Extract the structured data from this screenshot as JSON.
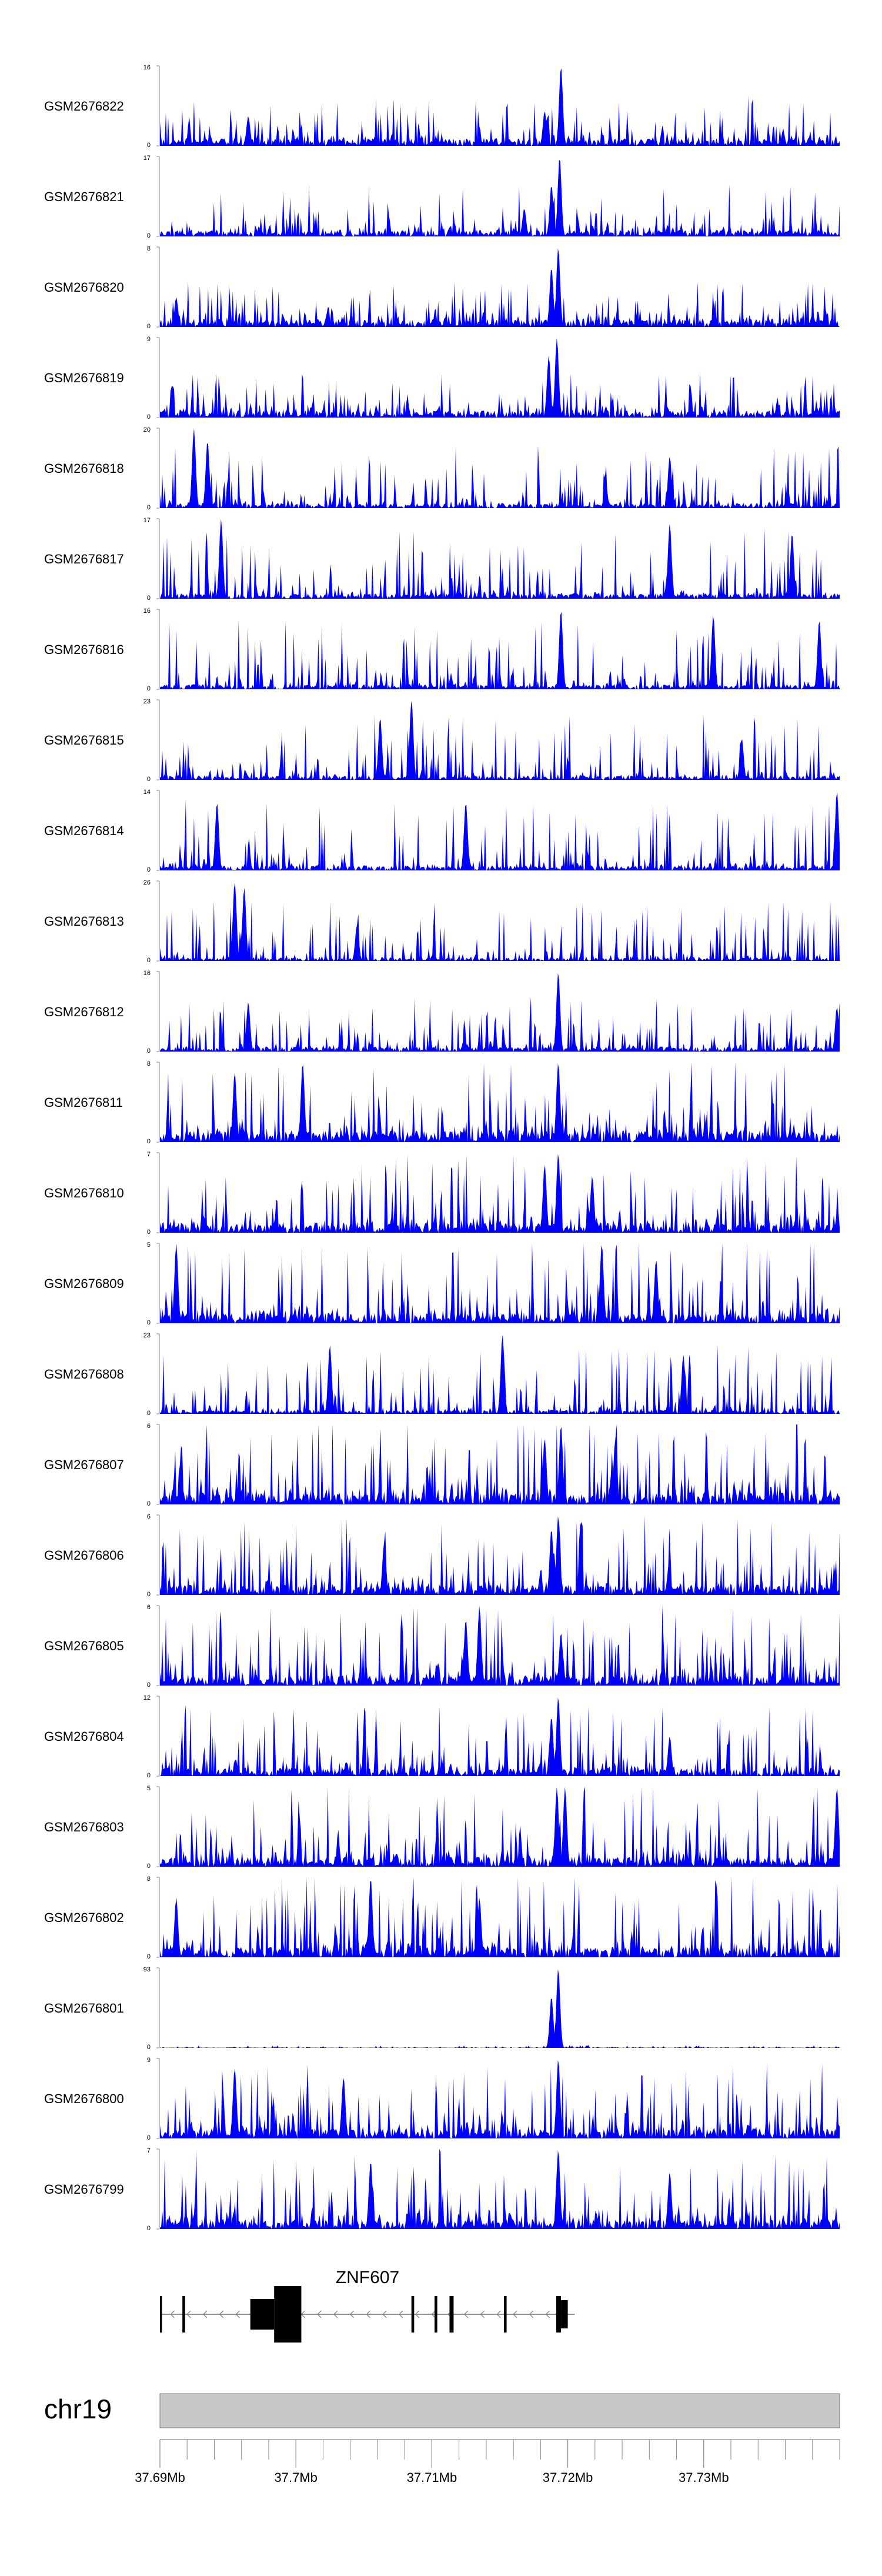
{
  "chart_data": {
    "type": "area",
    "title": "",
    "region": {
      "chromosome": "chr19",
      "start": 37690000,
      "end": 37740000
    },
    "colors": {
      "track_fill": "#0000ff",
      "gene": "#000000",
      "ideogram": "#c8c8c8",
      "axis": "#888888"
    },
    "tracks": [
      {
        "name": "GSM2676822",
        "ymax": 16,
        "ymin": 0,
        "peaks": [
          [
            37.7195,
            16
          ],
          [
            37.7183,
            7
          ],
          [
            37.6965,
            6
          ]
        ],
        "base": 0.22,
        "noise": 0.5,
        "seed": 11
      },
      {
        "name": "GSM2676821",
        "ymax": 17,
        "ymin": 0,
        "peaks": [
          [
            37.7194,
            17
          ],
          [
            37.7188,
            11
          ],
          [
            37.7168,
            6
          ]
        ],
        "base": 0.2,
        "noise": 0.55,
        "seed": 12
      },
      {
        "name": "GSM2676820",
        "ymax": 8,
        "ymin": 0,
        "peaks": [
          [
            37.7193,
            8
          ],
          [
            37.7188,
            6
          ],
          [
            37.6912,
            3
          ]
        ],
        "base": 0.25,
        "noise": 0.45,
        "seed": 13
      },
      {
        "name": "GSM2676819",
        "ymax": 9,
        "ymin": 0,
        "peaks": [
          [
            37.7192,
            9
          ],
          [
            37.7186,
            7
          ]
        ],
        "base": 0.22,
        "noise": 0.45,
        "seed": 14
      },
      {
        "name": "GSM2676818",
        "ymax": 20,
        "ymin": 0,
        "peaks": [
          [
            37.6925,
            20
          ],
          [
            37.6935,
            17
          ],
          [
            37.7275,
            13
          ]
        ],
        "base": 0.15,
        "noise": 0.7,
        "seed": 15
      },
      {
        "name": "GSM2676817",
        "ymax": 17,
        "ymin": 0,
        "peaks": [
          [
            37.6945,
            17
          ],
          [
            37.7275,
            16
          ],
          [
            37.7365,
            14
          ]
        ],
        "base": 0.15,
        "noise": 0.8,
        "seed": 16
      },
      {
        "name": "GSM2676816",
        "ymax": 16,
        "ymin": 0,
        "peaks": [
          [
            37.7195,
            16
          ],
          [
            37.7307,
            15
          ],
          [
            37.7385,
            14
          ]
        ],
        "base": 0.15,
        "noise": 0.8,
        "seed": 17
      },
      {
        "name": "GSM2676815",
        "ymax": 23,
        "ymin": 0,
        "peaks": [
          [
            37.7085,
            23
          ],
          [
            37.7062,
            18
          ],
          [
            37.7328,
            12
          ]
        ],
        "base": 0.12,
        "noise": 0.75,
        "seed": 18
      },
      {
        "name": "GSM2676814",
        "ymax": 14,
        "ymin": 0,
        "peaks": [
          [
            37.7398,
            14
          ],
          [
            37.6942,
            12
          ],
          [
            37.7125,
            12
          ]
        ],
        "base": 0.15,
        "noise": 0.8,
        "seed": 19
      },
      {
        "name": "GSM2676813",
        "ymax": 26,
        "ymin": 0,
        "peaks": [
          [
            37.6955,
            26
          ],
          [
            37.6962,
            24
          ],
          [
            37.7045,
            12
          ]
        ],
        "base": 0.1,
        "noise": 0.7,
        "seed": 20
      },
      {
        "name": "GSM2676812",
        "ymax": 16,
        "ymin": 0,
        "peaks": [
          [
            37.7193,
            16
          ],
          [
            37.6965,
            10
          ],
          [
            37.7398,
            9
          ]
        ],
        "base": 0.15,
        "noise": 0.6,
        "seed": 21
      },
      {
        "name": "GSM2676811",
        "ymax": 8,
        "ymin": 0,
        "peaks": [
          [
            37.7005,
            8
          ],
          [
            37.7193,
            8
          ],
          [
            37.6955,
            7
          ]
        ],
        "base": 0.35,
        "noise": 0.9,
        "seed": 22
      },
      {
        "name": "GSM2676810",
        "ymax": 7,
        "ymin": 0,
        "peaks": [
          [
            37.7193,
            7
          ],
          [
            37.7183,
            6
          ],
          [
            37.7218,
            5
          ]
        ],
        "base": 0.3,
        "noise": 0.85,
        "seed": 23
      },
      {
        "name": "GSM2676809",
        "ymax": 5,
        "ymin": 0,
        "peaks": [
          [
            37.7225,
            5
          ],
          [
            37.6912,
            5
          ],
          [
            37.7265,
            4
          ]
        ],
        "base": 0.3,
        "noise": 0.9,
        "seed": 24
      },
      {
        "name": "GSM2676808",
        "ymax": 23,
        "ymin": 0,
        "peaks": [
          [
            37.7152,
            23
          ],
          [
            37.7025,
            20
          ],
          [
            37.7285,
            17
          ]
        ],
        "base": 0.12,
        "noise": 0.8,
        "seed": 25
      },
      {
        "name": "GSM2676807",
        "ymax": 6,
        "ymin": 0,
        "peaks": [
          [
            37.7195,
            6
          ],
          [
            37.7183,
            5
          ],
          [
            37.7235,
            5
          ]
        ],
        "base": 0.35,
        "noise": 0.9,
        "seed": 26
      },
      {
        "name": "GSM2676806",
        "ymax": 6,
        "ymin": 0,
        "peaks": [
          [
            37.7193,
            6
          ],
          [
            37.7188,
            5
          ],
          [
            37.7065,
            4
          ]
        ],
        "base": 0.3,
        "noise": 0.85,
        "seed": 27
      },
      {
        "name": "GSM2676805",
        "ymax": 6,
        "ymin": 0,
        "peaks": [
          [
            37.7135,
            6
          ],
          [
            37.7125,
            5
          ],
          [
            37.7195,
            4
          ]
        ],
        "base": 0.3,
        "noise": 0.85,
        "seed": 28
      },
      {
        "name": "GSM2676804",
        "ymax": 12,
        "ymin": 0,
        "peaks": [
          [
            37.7193,
            12
          ],
          [
            37.7188,
            9
          ],
          [
            37.7275,
            6
          ]
        ],
        "base": 0.25,
        "noise": 0.75,
        "seed": 29
      },
      {
        "name": "GSM2676803",
        "ymax": 5,
        "ymin": 0,
        "peaks": [
          [
            37.7192,
            5
          ],
          [
            37.7198,
            5
          ],
          [
            37.7398,
            5
          ]
        ],
        "base": 0.3,
        "noise": 0.95,
        "seed": 30
      },
      {
        "name": "GSM2676802",
        "ymax": 8,
        "ymin": 0,
        "peaks": [
          [
            37.7055,
            8
          ],
          [
            37.7135,
            6
          ],
          [
            37.6912,
            6
          ]
        ],
        "base": 0.3,
        "noise": 0.9,
        "seed": 31
      },
      {
        "name": "GSM2676801",
        "ymax": 93,
        "ymin": 0,
        "peaks": [
          [
            37.7193,
            93
          ],
          [
            37.7188,
            60
          ]
        ],
        "base": 0.01,
        "noise": 0.03,
        "seed": 32
      },
      {
        "name": "GSM2676800",
        "ymax": 9,
        "ymin": 0,
        "peaks": [
          [
            37.7193,
            9
          ],
          [
            37.6955,
            8
          ],
          [
            37.7035,
            7
          ]
        ],
        "base": 0.3,
        "noise": 0.8,
        "seed": 33
      },
      {
        "name": "GSM2676799",
        "ymax": 7,
        "ymin": 0,
        "peaks": [
          [
            37.7193,
            7
          ],
          [
            37.7055,
            6
          ],
          [
            37.7275,
            5
          ]
        ],
        "base": 0.3,
        "noise": 0.85,
        "seed": 34
      }
    ],
    "gene": {
      "name": "ZNF607",
      "strand": "-",
      "start": 37.69,
      "end": 37.7205,
      "exons": [
        [
          37.69,
          37.69015
        ],
        [
          37.69165,
          37.69185
        ],
        [
          37.69665,
          37.6984
        ],
        [
          37.6984,
          37.7004
        ],
        [
          37.7085,
          37.7087
        ],
        [
          37.7102,
          37.7104
        ],
        [
          37.7113,
          37.7116
        ],
        [
          37.7153,
          37.7155
        ],
        [
          37.71915,
          37.7195
        ],
        [
          37.7195,
          37.72
        ]
      ],
      "exon_heights": [
        "thin",
        "thin",
        "thick",
        "tall",
        "thin",
        "thin",
        "thin",
        "thin",
        "thin",
        "mid"
      ]
    },
    "ideogram": {
      "label": "chr19"
    },
    "x_axis": {
      "range": [
        37.69,
        37.74
      ],
      "ticks": [
        37.69,
        37.7,
        37.71,
        37.72,
        37.73
      ],
      "tick_labels": [
        "37.69Mb",
        "37.7Mb",
        "37.71Mb",
        "37.72Mb",
        "37.73Mb"
      ],
      "minor_step": 0.002
    }
  }
}
